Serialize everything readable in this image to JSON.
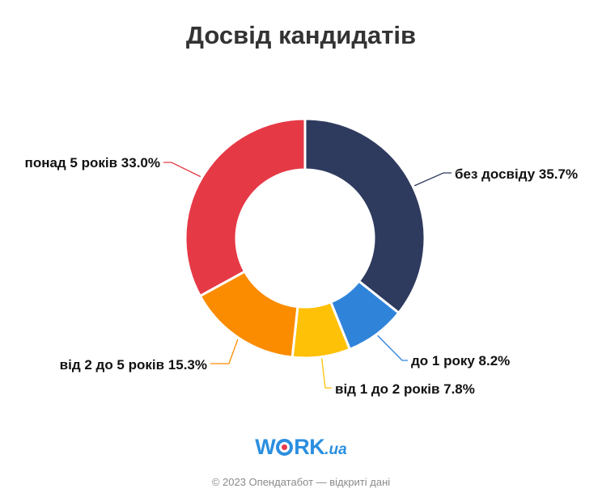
{
  "chart_data": {
    "type": "pie",
    "title": "Досвід кандидатів",
    "donut": true,
    "slices": [
      {
        "label": "без досвіду 35.7%",
        "value": 35.7,
        "color": "#2e3b5e"
      },
      {
        "label": "до 1 року 8.2%",
        "value": 8.2,
        "color": "#2f84da"
      },
      {
        "label": "від 1 до 2 років 7.8%",
        "value": 7.8,
        "color": "#ffc107"
      },
      {
        "label": "від 2 до 5 років 15.3%",
        "value": 15.3,
        "color": "#fb8c00"
      },
      {
        "label": "понад 5 років 33.0%",
        "value": 33.0,
        "color": "#e63946"
      }
    ]
  },
  "logo": {
    "brand_left": "W",
    "brand_right": "RK",
    "tld": ".ua",
    "icon": "target-o-icon"
  },
  "footer": {
    "text": "© 2023 Опендатабот — відкриті дані"
  }
}
